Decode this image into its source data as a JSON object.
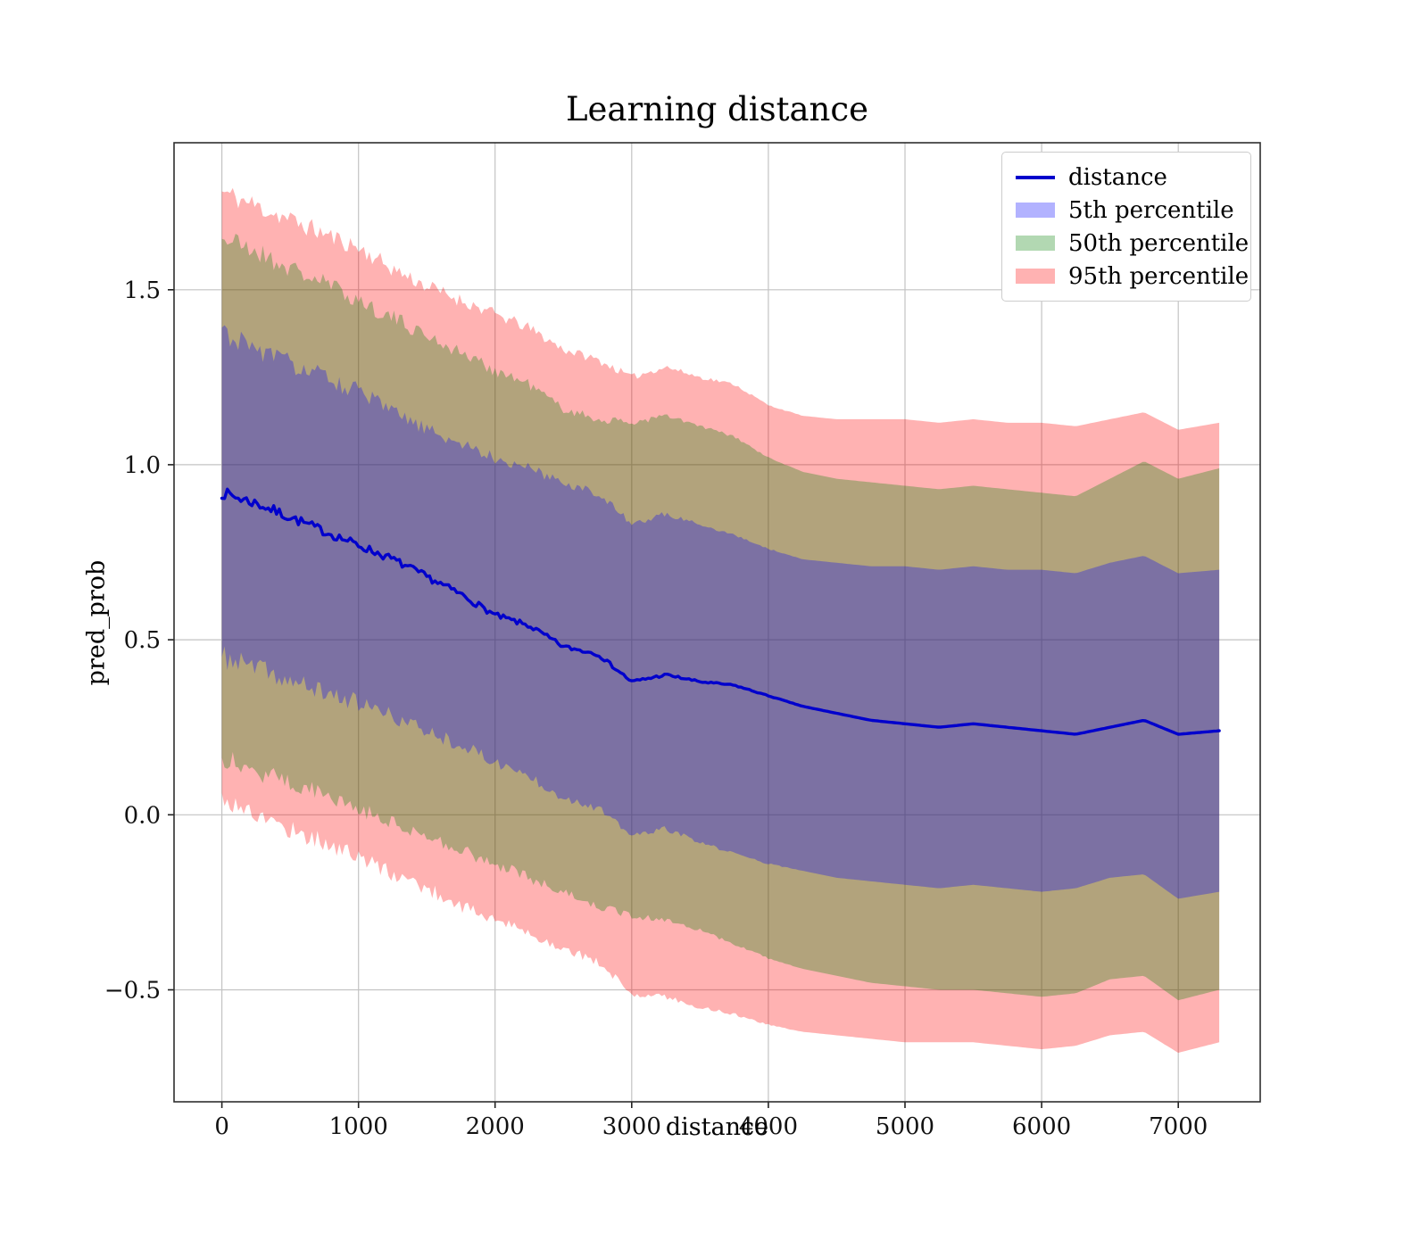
{
  "chart_data": {
    "type": "line",
    "title": "Learning distance",
    "xlabel": "distance",
    "ylabel": "pred_prob",
    "xlim": [
      -350,
      7600
    ],
    "ylim": [
      -0.82,
      1.92
    ],
    "grid": true,
    "xticks": [
      0,
      1000,
      2000,
      3000,
      4000,
      5000,
      6000,
      7000
    ],
    "xtick_labels": [
      "0",
      "1000",
      "2000",
      "3000",
      "4000",
      "5000",
      "6000",
      "7000"
    ],
    "yticks": [
      -0.5,
      0.0,
      0.5,
      1.0,
      1.5
    ],
    "ytick_labels": [
      "−0.5",
      "0.0",
      "0.5",
      "1.0",
      "1.5"
    ],
    "noise": {
      "band_amp": 0.034,
      "line_amp": 0.016,
      "fade_x": 4300,
      "step": 20
    },
    "x": [
      0,
      250,
      500,
      750,
      1000,
      1250,
      1500,
      1750,
      2000,
      2250,
      2500,
      2750,
      3000,
      3250,
      3500,
      3750,
      4000,
      4250,
      4500,
      4750,
      5000,
      5250,
      5500,
      5750,
      6000,
      6250,
      6500,
      6750,
      7000,
      7300
    ],
    "series": [
      {
        "name": "distance",
        "color": "#0000cc",
        "values": [
          0.92,
          0.89,
          0.85,
          0.81,
          0.77,
          0.73,
          0.68,
          0.63,
          0.57,
          0.54,
          0.48,
          0.46,
          0.38,
          0.4,
          0.38,
          0.37,
          0.34,
          0.31,
          0.29,
          0.27,
          0.26,
          0.25,
          0.26,
          0.25,
          0.24,
          0.23,
          0.25,
          0.27,
          0.23,
          0.24
        ]
      }
    ],
    "bands": [
      {
        "name": "95th percentile",
        "fill": "rgba(255,0,0,0.30)",
        "upper": [
          1.78,
          1.74,
          1.7,
          1.66,
          1.62,
          1.56,
          1.51,
          1.47,
          1.43,
          1.39,
          1.33,
          1.3,
          1.25,
          1.28,
          1.25,
          1.23,
          1.17,
          1.14,
          1.13,
          1.13,
          1.13,
          1.12,
          1.13,
          1.12,
          1.12,
          1.11,
          1.13,
          1.15,
          1.1,
          1.12
        ],
        "lower": [
          0.05,
          0.0,
          -0.04,
          -0.08,
          -0.12,
          -0.17,
          -0.21,
          -0.26,
          -0.3,
          -0.34,
          -0.38,
          -0.42,
          -0.51,
          -0.52,
          -0.55,
          -0.57,
          -0.6,
          -0.62,
          -0.63,
          -0.64,
          -0.65,
          -0.65,
          -0.65,
          -0.66,
          -0.67,
          -0.66,
          -0.63,
          -0.62,
          -0.68,
          -0.65
        ]
      },
      {
        "name": "50th percentile",
        "fill": "rgba(0,128,0,0.30)",
        "upper": [
          1.65,
          1.61,
          1.56,
          1.52,
          1.47,
          1.42,
          1.37,
          1.32,
          1.27,
          1.23,
          1.16,
          1.13,
          1.12,
          1.14,
          1.11,
          1.08,
          1.02,
          0.98,
          0.96,
          0.95,
          0.94,
          0.93,
          0.94,
          0.93,
          0.92,
          0.91,
          0.96,
          1.01,
          0.96,
          0.99
        ],
        "lower": [
          0.17,
          0.13,
          0.09,
          0.06,
          0.02,
          -0.02,
          -0.06,
          -0.1,
          -0.14,
          -0.18,
          -0.22,
          -0.26,
          -0.29,
          -0.3,
          -0.33,
          -0.37,
          -0.41,
          -0.44,
          -0.46,
          -0.48,
          -0.49,
          -0.5,
          -0.5,
          -0.51,
          -0.52,
          -0.51,
          -0.47,
          -0.46,
          -0.53,
          -0.5
        ]
      },
      {
        "name": "5th percentile",
        "fill": "rgba(0,0,255,0.30)",
        "upper": [
          1.38,
          1.33,
          1.29,
          1.25,
          1.21,
          1.15,
          1.1,
          1.06,
          1.02,
          0.99,
          0.95,
          0.92,
          0.83,
          0.86,
          0.83,
          0.8,
          0.76,
          0.73,
          0.72,
          0.71,
          0.71,
          0.7,
          0.71,
          0.7,
          0.7,
          0.69,
          0.72,
          0.74,
          0.69,
          0.7
        ],
        "lower": [
          0.45,
          0.42,
          0.38,
          0.35,
          0.32,
          0.28,
          0.24,
          0.2,
          0.15,
          0.11,
          0.05,
          0.02,
          -0.06,
          -0.04,
          -0.08,
          -0.11,
          -0.14,
          -0.16,
          -0.18,
          -0.19,
          -0.2,
          -0.21,
          -0.2,
          -0.21,
          -0.22,
          -0.21,
          -0.18,
          -0.17,
          -0.24,
          -0.22
        ]
      }
    ],
    "legend": {
      "position": "upper right",
      "entries": [
        {
          "label": "distance",
          "swatch": "line",
          "color": "#0000cc"
        },
        {
          "label": "5th percentile",
          "swatch": "patch",
          "color": "#b2b2ff"
        },
        {
          "label": "50th percentile",
          "swatch": "patch",
          "color": "#b2d8b2"
        },
        {
          "label": "95th percentile",
          "swatch": "patch",
          "color": "#ffb2b2"
        }
      ]
    }
  }
}
